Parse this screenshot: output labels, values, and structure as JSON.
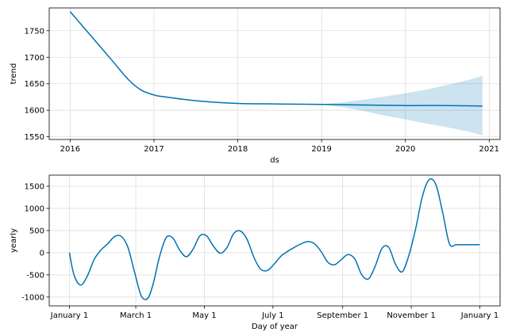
{
  "colors": {
    "line": "#0072b2",
    "band": "#0072b2",
    "grid": "#dddddd"
  },
  "chart_data": [
    {
      "type": "line",
      "title": "",
      "xlabel": "ds",
      "ylabel": "trend",
      "x_tick_labels": [
        "2016",
        "2017",
        "2018",
        "2019",
        "2020",
        "2021"
      ],
      "x_ticks": [
        2016,
        2017,
        2018,
        2019,
        2020,
        2021
      ],
      "y_ticks": [
        1550,
        1600,
        1650,
        1700,
        1750
      ],
      "xlim": [
        2015.75,
        2021.13
      ],
      "ylim": [
        1545,
        1793
      ],
      "grid": true,
      "series": [
        {
          "x": [
            2016.0,
            2016.25,
            2016.5,
            2016.7,
            2016.85,
            2017.0,
            2017.1,
            2017.5,
            2018.0,
            2018.5,
            2019.0,
            2019.5,
            2020.0,
            2020.5,
            2020.92
          ],
          "values": [
            1786,
            1740,
            1694,
            1657,
            1638,
            1629,
            1626,
            1618,
            1613,
            1612,
            1611,
            1610,
            1609,
            1609,
            1608
          ]
        }
      ],
      "uncertainty_band": {
        "x": [
          2019.0,
          2019.25,
          2019.5,
          2019.75,
          2020.0,
          2020.25,
          2020.5,
          2020.75,
          2020.92
        ],
        "upper": [
          1611,
          1615,
          1620,
          1626,
          1632,
          1639,
          1648,
          1657,
          1665
        ],
        "lower": [
          1611,
          1606,
          1599,
          1590,
          1583,
          1575,
          1568,
          1560,
          1553
        ]
      }
    },
    {
      "type": "line",
      "title": "",
      "xlabel": "Day of year",
      "ylabel": "yearly",
      "x_tick_labels": [
        "January 1",
        "March 1",
        "May 1",
        "July 1",
        "September 1",
        "November 1",
        "January 1"
      ],
      "x_ticks": [
        0,
        59,
        120,
        181,
        243,
        304,
        365
      ],
      "y_ticks": [
        -1000,
        -500,
        0,
        500,
        1000,
        1500
      ],
      "xlim": [
        -18,
        383
      ],
      "ylim": [
        -1200,
        1750
      ],
      "grid": true,
      "series": [
        {
          "x": [
            0,
            4,
            10,
            16,
            22,
            28,
            34,
            40,
            46,
            52,
            58,
            64,
            70,
            75,
            80,
            86,
            92,
            98,
            104,
            110,
            116,
            122,
            128,
            134,
            140,
            146,
            152,
            158,
            164,
            170,
            176,
            182,
            188,
            194,
            200,
            206,
            212,
            218,
            224,
            230,
            236,
            242,
            248,
            254,
            260,
            266,
            272,
            278,
            284,
            290,
            296,
            302,
            308,
            314,
            320,
            326,
            332,
            338,
            344,
            350,
            356,
            362,
            365
          ],
          "values": [
            0,
            -500,
            -730,
            -520,
            -150,
            60,
            200,
            360,
            370,
            120,
            -450,
            -980,
            -1020,
            -650,
            -100,
            340,
            330,
            60,
            -90,
            80,
            380,
            380,
            150,
            -10,
            110,
            430,
            490,
            300,
            -100,
            -370,
            -400,
            -260,
            -80,
            30,
            120,
            200,
            250,
            200,
            20,
            -220,
            -270,
            -150,
            -40,
            -150,
            -500,
            -590,
            -300,
            100,
            120,
            -260,
            -430,
            -50,
            550,
            1280,
            1650,
            1530,
            900,
            200,
            180,
            180,
            180,
            180,
            180
          ]
        }
      ]
    }
  ]
}
